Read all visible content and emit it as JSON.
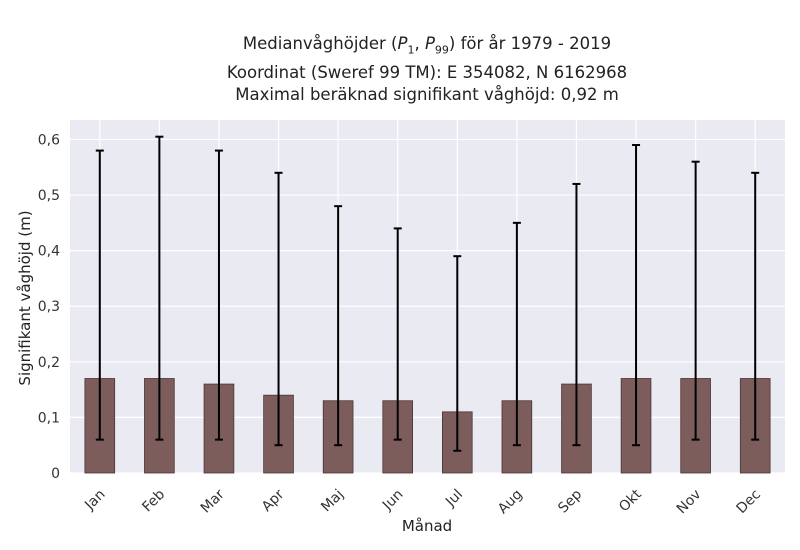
{
  "chart_data": {
    "type": "bar",
    "title_lines": [
      "Medianvåghöjder (P1, P99) för år 1979 - 2019",
      "Koordinat (Sweref 99 TM): E 354082, N 6162968",
      "Maximal beräknad signifikant våghöjd: 0,92 m"
    ],
    "xlabel": "Månad",
    "ylabel": "Signifikant våghöjd (m)",
    "categories": [
      "Jan",
      "Feb",
      "Mar",
      "Apr",
      "Maj",
      "Jun",
      "Jul",
      "Aug",
      "Sep",
      "Okt",
      "Nov",
      "Dec"
    ],
    "values": [
      0.17,
      0.17,
      0.16,
      0.14,
      0.13,
      0.13,
      0.11,
      0.13,
      0.16,
      0.17,
      0.17,
      0.17
    ],
    "p1": [
      0.06,
      0.06,
      0.06,
      0.05,
      0.05,
      0.06,
      0.04,
      0.05,
      0.05,
      0.05,
      0.06,
      0.06
    ],
    "p99": [
      0.58,
      0.605,
      0.58,
      0.54,
      0.48,
      0.44,
      0.39,
      0.45,
      0.52,
      0.59,
      0.56,
      0.54
    ],
    "yticks": [
      0,
      0.1,
      0.2,
      0.3,
      0.4,
      0.5,
      0.6
    ],
    "ytick_labels": [
      "0",
      "0,1",
      "0,2",
      "0,3",
      "0,4",
      "0,5",
      "0,6"
    ],
    "ylim": [
      0,
      0.635
    ],
    "grid": true,
    "colors": {
      "bar": "#7d5c5c",
      "bar_edge": "#4a3535",
      "error": "#000000",
      "plot_bg": "#eaeaf2",
      "grid": "#ffffff"
    }
  }
}
